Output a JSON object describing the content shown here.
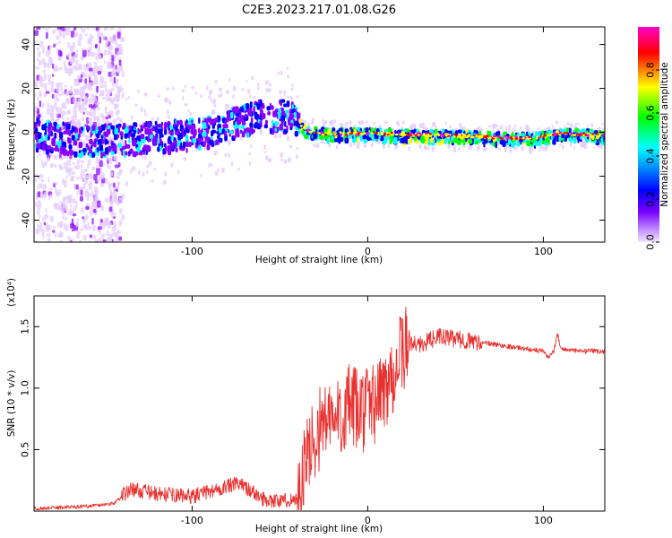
{
  "title": "C2E3.2023.217.01.08.G26",
  "chart_data": [
    {
      "type": "heatmap",
      "xlabel": "Height of straight line (km)",
      "ylabel": "Frequency (Hz)",
      "xlim": [
        -190,
        135
      ],
      "ylim": [
        -50,
        48
      ],
      "xticks": [
        -100,
        0,
        100
      ],
      "yticks": [
        40,
        20,
        0,
        -20,
        -40
      ],
      "colorbar": {
        "label": "Normalized spectral amplitude",
        "range": [
          0,
          1
        ],
        "ticks": [
          "0.0",
          "0.2",
          "0.4",
          "0.6",
          "0.8"
        ],
        "colors": [
          "#e6ccff",
          "#8a00ff",
          "#0000ff",
          "#00ffff",
          "#00ff00",
          "#ffff00",
          "#ff0000",
          "#ff00ff"
        ]
      },
      "ridge": {
        "x": [
          -190,
          -160,
          -130,
          -100,
          -80,
          -60,
          -45,
          -35,
          -25,
          0,
          50,
          80,
          95,
          110,
          135
        ],
        "freq_hz": [
          0,
          -3,
          -2,
          0,
          4,
          9,
          8,
          1,
          0,
          0,
          -1,
          -2,
          -2,
          0,
          -1
        ]
      }
    },
    {
      "type": "line",
      "xlabel": "Height of straight line (km)",
      "ylabel": "SNR (10 * v/v)",
      "multiplier": "(x10⁴)",
      "xlim": [
        -190,
        135
      ],
      "ylim": [
        0.0,
        1.75
      ],
      "xticks": [
        -100,
        0,
        100
      ],
      "yticks": [
        "0.5",
        "1.0",
        "1.5"
      ],
      "series": [
        {
          "color": "#e8312f",
          "x": [
            -190,
            -160,
            -145,
            -135,
            -120,
            -100,
            -90,
            -80,
            -75,
            -70,
            -60,
            -50,
            -40,
            -36,
            -33,
            -30,
            -25,
            -20,
            -15,
            -10,
            -5,
            0,
            5,
            10,
            15,
            20,
            25,
            30,
            40,
            50,
            60,
            70,
            80,
            90,
            100,
            103,
            106,
            108,
            110,
            120,
            135
          ],
          "y": [
            0.02,
            0.04,
            0.06,
            0.18,
            0.14,
            0.12,
            0.16,
            0.2,
            0.22,
            0.2,
            0.1,
            0.08,
            0.1,
            0.35,
            0.5,
            0.6,
            0.75,
            0.7,
            0.8,
            0.85,
            0.8,
            0.85,
            0.9,
            1.0,
            1.15,
            1.3,
            1.38,
            1.35,
            1.42,
            1.4,
            1.38,
            1.36,
            1.34,
            1.32,
            1.3,
            1.25,
            1.3,
            1.45,
            1.32,
            1.3,
            1.3
          ]
        }
      ]
    }
  ]
}
